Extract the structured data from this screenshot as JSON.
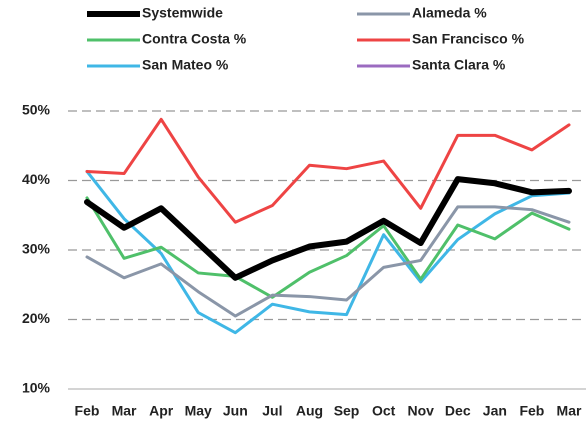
{
  "chart_data": {
    "type": "line",
    "categories": [
      "Feb",
      "Mar",
      "Apr",
      "May",
      "Jun",
      "Jul",
      "Aug",
      "Sep",
      "Oct",
      "Nov",
      "Dec",
      "Jan",
      "Feb",
      "Mar"
    ],
    "series": [
      {
        "name": "Systemwide",
        "color": "#000000",
        "values": [
          36.9,
          33.2,
          36,
          31,
          26,
          28.5,
          30.5,
          31.2,
          34.2,
          31,
          40.2,
          39.6,
          38.3,
          38.5
        ]
      },
      {
        "name": "Alameda %",
        "color": "#8a96a8",
        "values": [
          29,
          26,
          28,
          24,
          20.5,
          23.5,
          23.3,
          22.8,
          27.5,
          28.5,
          36.2,
          36.2,
          35.8,
          34
        ]
      },
      {
        "name": "Contra Costa %",
        "color": "#4fc06a",
        "values": [
          37.5,
          28.8,
          30.4,
          26.7,
          26.2,
          23.2,
          26.8,
          29.2,
          33.5,
          25.8,
          33.6,
          31.6,
          35.3,
          33
        ]
      },
      {
        "name": "San Francisco %",
        "color": "#ee4444",
        "values": [
          41.3,
          41,
          48.8,
          40.5,
          34,
          36.4,
          42.2,
          41.7,
          42.8,
          36,
          46.5,
          46.5,
          44.4,
          48
        ]
      },
      {
        "name": "San Mateo %",
        "color": "#3fb7e6",
        "values": [
          41.3,
          34.5,
          29.5,
          21,
          18.1,
          22.2,
          21.1,
          20.7,
          32.2,
          25.4,
          31.5,
          35.2,
          37.8,
          38.2
        ]
      },
      {
        "name": "Santa Clara %",
        "color": "#9b6bc0",
        "values": [
          null,
          null,
          null,
          null,
          null,
          null,
          null,
          null,
          null,
          null,
          null,
          null,
          null,
          null
        ]
      }
    ],
    "ylim": [
      10,
      50
    ],
    "yticks": [
      {
        "value": 10,
        "label": "10%"
      },
      {
        "value": 20,
        "label": "20%"
      },
      {
        "value": 30,
        "label": "30%"
      },
      {
        "value": 40,
        "label": "40%"
      },
      {
        "value": 50,
        "label": "50%"
      }
    ],
    "grid": true
  }
}
